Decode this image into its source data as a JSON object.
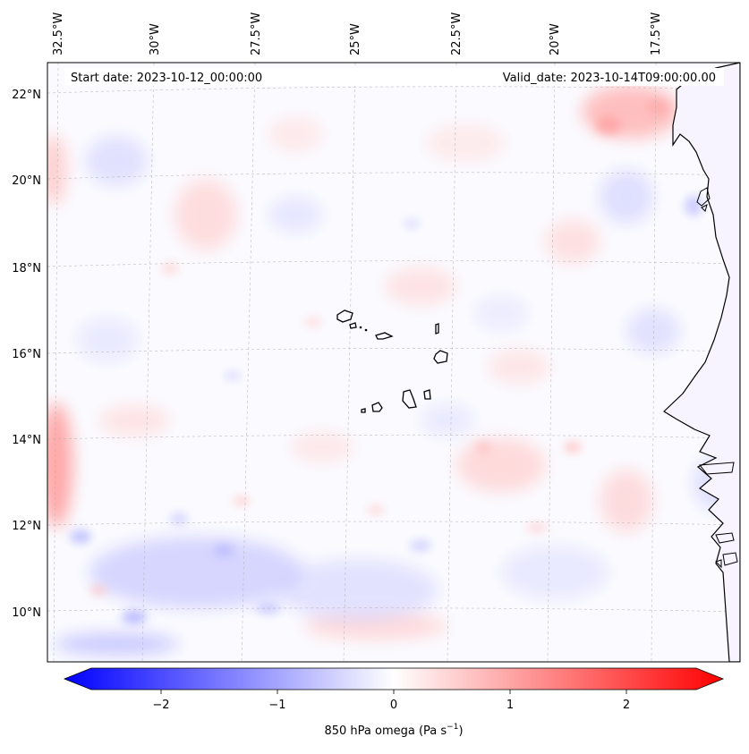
{
  "header": {
    "start_date": "Start date: 2023-10-12_00:00:00",
    "valid_date": "Valid_date: 2023-10-14T09:00:00.00"
  },
  "map": {
    "lon_labels": [
      "32.5°W",
      "30°W",
      "27.5°W",
      "25°W",
      "22.5°W",
      "20°W",
      "17.5°W"
    ],
    "lat_labels": [
      "22°N",
      "20°N",
      "18°N",
      "16°N",
      "14°N",
      "12°N",
      "10°N"
    ],
    "islands": [
      "Santo Antão",
      "São Vicente",
      "São Nicolau",
      "Sal",
      "Boa Vista",
      "Maio",
      "Santiago",
      "Fogo",
      "Brava"
    ]
  },
  "colorbar": {
    "tick_labels": [
      "−2",
      "−1",
      "0",
      "1",
      "2"
    ],
    "tick_values": [
      -2,
      -1,
      0,
      1,
      2
    ],
    "range": [
      -2.6,
      2.6
    ],
    "label_main": "850 hPa omega (Pa s",
    "label_exp": "−1",
    "label_close": ")"
  },
  "colors": {
    "negative": "#0000ff",
    "neutral": "#ffffff",
    "positive": "#ff0000",
    "coast": "#000000",
    "grid": "#b0b0b0"
  }
}
